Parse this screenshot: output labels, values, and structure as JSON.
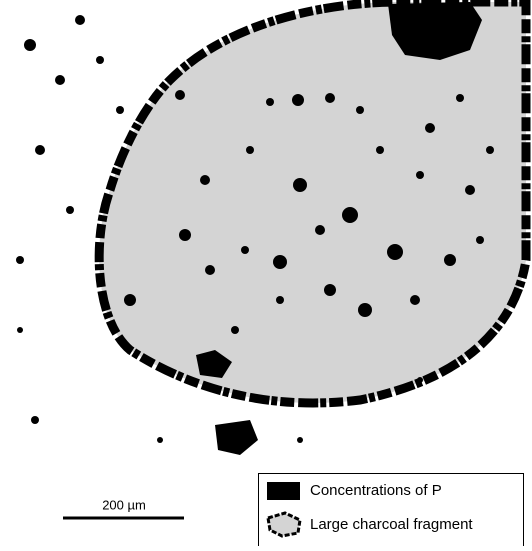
{
  "scale_bar": {
    "label": "200 µm"
  },
  "legend": {
    "items": [
      {
        "label": "Concentrations of P"
      },
      {
        "label": "Large charcoal fragment"
      }
    ]
  }
}
